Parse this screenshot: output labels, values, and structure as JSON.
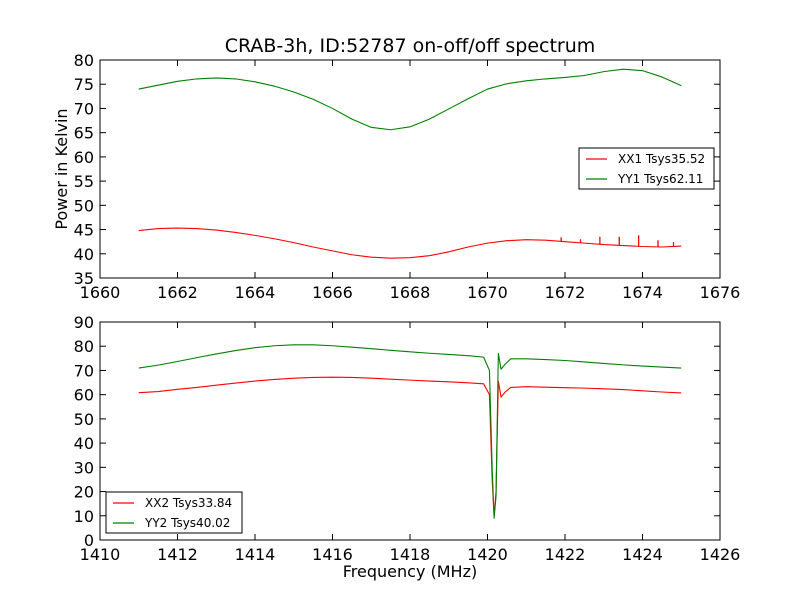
{
  "chart_data": [
    {
      "type": "line",
      "title": "CRAB-3h, ID:52787 on-off/off spectrum",
      "xlabel": "",
      "ylabel": "Power in Kelvin",
      "xlim": [
        1660,
        1676
      ],
      "ylim": [
        35,
        80
      ],
      "xticks": [
        "1660",
        "1662",
        "1664",
        "1666",
        "1668",
        "1670",
        "1672",
        "1674",
        "1676"
      ],
      "yticks": [
        "35",
        "40",
        "45",
        "50",
        "55",
        "60",
        "65",
        "70",
        "75",
        "80"
      ],
      "legend_position": "center-right",
      "series": [
        {
          "name": "XX1 Tsys35.52",
          "color": "#ff0000",
          "points": [
            [
              1661.0,
              44.8
            ],
            [
              1661.5,
              45.2
            ],
            [
              1662.0,
              45.3
            ],
            [
              1662.5,
              45.2
            ],
            [
              1663.0,
              44.9
            ],
            [
              1663.5,
              44.4
            ],
            [
              1664.0,
              43.8
            ],
            [
              1664.5,
              43.1
            ],
            [
              1665.0,
              42.3
            ],
            [
              1665.5,
              41.4
            ],
            [
              1666.0,
              40.6
            ],
            [
              1666.5,
              39.8
            ],
            [
              1667.0,
              39.3
            ],
            [
              1667.5,
              39.1
            ],
            [
              1668.0,
              39.2
            ],
            [
              1668.5,
              39.6
            ],
            [
              1669.0,
              40.4
            ],
            [
              1669.5,
              41.4
            ],
            [
              1670.0,
              42.2
            ],
            [
              1670.5,
              42.7
            ],
            [
              1671.0,
              42.9
            ],
            [
              1671.5,
              42.8
            ],
            [
              1672.0,
              42.5
            ],
            [
              1672.5,
              42.2
            ],
            [
              1673.0,
              41.9
            ],
            [
              1673.5,
              41.7
            ],
            [
              1674.0,
              41.5
            ],
            [
              1674.5,
              41.4
            ],
            [
              1675.0,
              41.6
            ]
          ],
          "spikes": [
            [
              1671.9,
              43.4
            ],
            [
              1672.4,
              43.0
            ],
            [
              1672.9,
              43.5
            ],
            [
              1673.4,
              43.5
            ],
            [
              1673.9,
              43.8
            ],
            [
              1674.4,
              42.8
            ],
            [
              1674.8,
              42.4
            ]
          ]
        },
        {
          "name": "YY1 Tsys62.11",
          "color": "#008000",
          "points": [
            [
              1661.0,
              74.0
            ],
            [
              1661.5,
              74.8
            ],
            [
              1662.0,
              75.6
            ],
            [
              1662.5,
              76.1
            ],
            [
              1663.0,
              76.3
            ],
            [
              1663.5,
              76.1
            ],
            [
              1664.0,
              75.5
            ],
            [
              1664.5,
              74.6
            ],
            [
              1665.0,
              73.4
            ],
            [
              1665.5,
              71.9
            ],
            [
              1666.0,
              70.0
            ],
            [
              1666.5,
              67.8
            ],
            [
              1667.0,
              66.1
            ],
            [
              1667.5,
              65.6
            ],
            [
              1668.0,
              66.2
            ],
            [
              1668.5,
              67.8
            ],
            [
              1669.0,
              69.9
            ],
            [
              1669.5,
              72.0
            ],
            [
              1670.0,
              74.0
            ],
            [
              1670.5,
              75.1
            ],
            [
              1671.0,
              75.7
            ],
            [
              1671.5,
              76.1
            ],
            [
              1672.0,
              76.4
            ],
            [
              1672.5,
              76.8
            ],
            [
              1673.0,
              77.6
            ],
            [
              1673.5,
              78.1
            ],
            [
              1674.0,
              77.8
            ],
            [
              1674.5,
              76.5
            ],
            [
              1675.0,
              74.7
            ]
          ]
        }
      ]
    },
    {
      "type": "line",
      "title": "",
      "xlabel": "Frequency (MHz)",
      "ylabel": "",
      "xlim": [
        1410,
        1426
      ],
      "ylim": [
        0,
        90
      ],
      "xticks": [
        "1410",
        "1412",
        "1414",
        "1416",
        "1418",
        "1420",
        "1422",
        "1424",
        "1426"
      ],
      "yticks": [
        "0",
        "10",
        "20",
        "30",
        "40",
        "50",
        "60",
        "70",
        "80",
        "90"
      ],
      "legend_position": "lower-left",
      "series": [
        {
          "name": "XX2 Tsys33.84",
          "color": "#ff0000",
          "points": [
            [
              1411.0,
              60.8
            ],
            [
              1411.5,
              61.3
            ],
            [
              1412.0,
              62.2
            ],
            [
              1412.5,
              63.0
            ],
            [
              1413.0,
              63.9
            ],
            [
              1413.5,
              64.8
            ],
            [
              1414.0,
              65.6
            ],
            [
              1414.5,
              66.3
            ],
            [
              1415.0,
              66.8
            ],
            [
              1415.5,
              67.1
            ],
            [
              1416.0,
              67.2
            ],
            [
              1416.5,
              67.1
            ],
            [
              1417.0,
              66.8
            ],
            [
              1417.5,
              66.4
            ],
            [
              1418.0,
              66.0
            ],
            [
              1418.5,
              65.6
            ],
            [
              1419.0,
              65.3
            ],
            [
              1419.5,
              64.9
            ],
            [
              1419.9,
              64.5
            ],
            [
              1420.05,
              60.0
            ],
            [
              1420.12,
              25.0
            ],
            [
              1420.17,
              10.0
            ],
            [
              1420.22,
              20.0
            ],
            [
              1420.28,
              65.5
            ],
            [
              1420.35,
              59.0
            ],
            [
              1420.45,
              61.0
            ],
            [
              1420.6,
              63.0
            ],
            [
              1421.0,
              63.3
            ],
            [
              1421.5,
              63.1
            ],
            [
              1422.0,
              62.9
            ],
            [
              1422.5,
              62.7
            ],
            [
              1423.0,
              62.4
            ],
            [
              1423.5,
              62.1
            ],
            [
              1424.0,
              61.6
            ],
            [
              1424.5,
              61.1
            ],
            [
              1425.0,
              60.7
            ]
          ]
        },
        {
          "name": "YY2 Tsys40.02",
          "color": "#008000",
          "points": [
            [
              1411.0,
              71.0
            ],
            [
              1411.5,
              72.2
            ],
            [
              1412.0,
              73.7
            ],
            [
              1412.5,
              75.3
            ],
            [
              1413.0,
              76.8
            ],
            [
              1413.5,
              78.2
            ],
            [
              1414.0,
              79.4
            ],
            [
              1414.5,
              80.2
            ],
            [
              1415.0,
              80.6
            ],
            [
              1415.5,
              80.6
            ],
            [
              1416.0,
              80.2
            ],
            [
              1416.5,
              79.6
            ],
            [
              1417.0,
              79.0
            ],
            [
              1417.5,
              78.3
            ],
            [
              1418.0,
              77.7
            ],
            [
              1418.5,
              77.1
            ],
            [
              1419.0,
              76.6
            ],
            [
              1419.5,
              76.1
            ],
            [
              1419.9,
              75.5
            ],
            [
              1420.05,
              70.0
            ],
            [
              1420.12,
              30.0
            ],
            [
              1420.17,
              9.0
            ],
            [
              1420.22,
              18.0
            ],
            [
              1420.28,
              77.0
            ],
            [
              1420.35,
              70.5
            ],
            [
              1420.45,
              72.5
            ],
            [
              1420.6,
              74.8
            ],
            [
              1421.0,
              74.8
            ],
            [
              1421.5,
              74.5
            ],
            [
              1422.0,
              74.1
            ],
            [
              1422.5,
              73.5
            ],
            [
              1423.0,
              72.9
            ],
            [
              1423.5,
              72.3
            ],
            [
              1424.0,
              71.8
            ],
            [
              1424.5,
              71.4
            ],
            [
              1425.0,
              71.0
            ]
          ]
        }
      ]
    }
  ]
}
